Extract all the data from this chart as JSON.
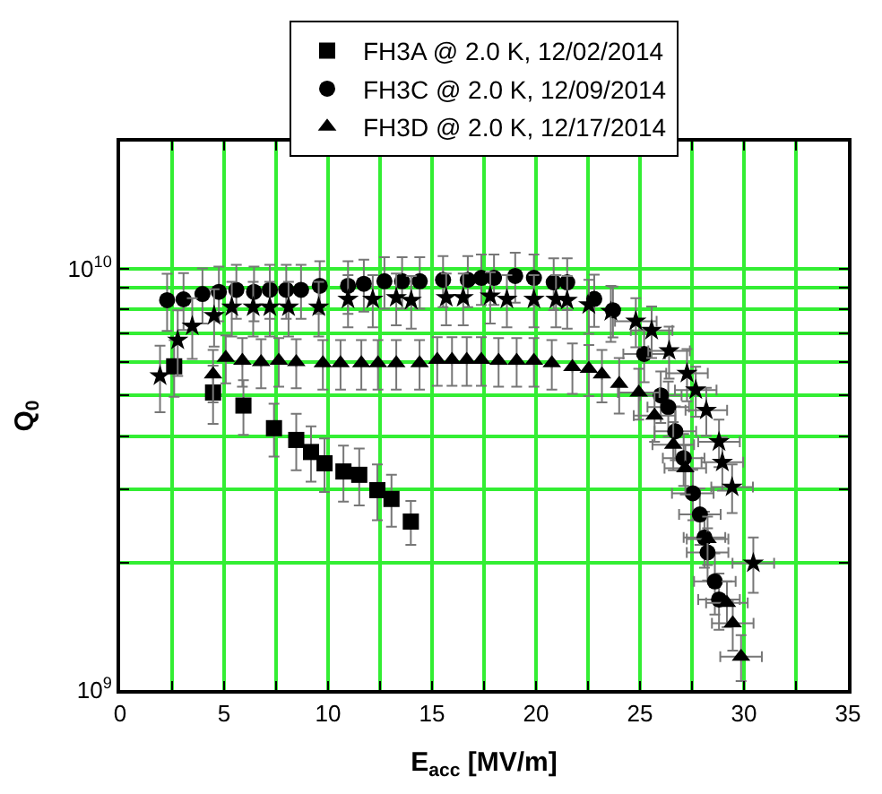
{
  "chart_data": {
    "type": "scatter",
    "xlabel": "E$_{acc}$ [MV/m]",
    "ylabel": "Q$_{0}$",
    "log": "y",
    "grid": true,
    "legend": "top",
    "xlim": [
      0,
      35
    ],
    "xticks": [
      0,
      {
        "value": 2.5,
        "label": null
      },
      5,
      {
        "value": 7.5,
        "label": null
      },
      10,
      {
        "value": 12.5,
        "label": null
      },
      15,
      {
        "value": 17.5,
        "label": null
      },
      20,
      {
        "value": 22.5,
        "label": null
      },
      25,
      {
        "value": 27.5,
        "label": null
      },
      30,
      {
        "value": 32.5,
        "label": null
      },
      35
    ],
    "ylim": [
      1000000000.0,
      20000000000.0
    ],
    "yticks": [
      {
        "value": 1000000000.0,
        "label": "10$^{9}$"
      },
      {
        "value": 2000000000.0,
        "label": null
      },
      {
        "value": 3000000000.0,
        "label": null
      },
      {
        "value": 4000000000.0,
        "label": null
      },
      {
        "value": 5000000000.0,
        "label": null
      },
      {
        "value": 6000000000.0,
        "label": null
      },
      {
        "value": 7000000000.0,
        "label": null
      },
      {
        "value": 8000000000.0,
        "label": null
      },
      {
        "value": 9000000000.0,
        "label": null
      },
      {
        "value": 10000000000.0,
        "label": "10$^{10}$"
      }
    ],
    "series": [
      {
        "name": "FH3A @ 2.0 K, 12/02/2014",
        "color": "#000000",
        "marker": "square",
        "x": [
          2.6,
          4.47,
          5.93,
          7.4,
          8.47,
          9.18,
          9.83,
          10.74,
          11.5,
          12.37,
          13.05,
          13.98
        ],
        "values": [
          5860000000.0,
          5080000000.0,
          4730000000.0,
          4180000000.0,
          3920000000.0,
          3670000000.0,
          3450000000.0,
          3300000000.0,
          3240000000.0,
          2980000000.0,
          2840000000.0,
          2510000000.0
        ],
        "errors": [
          900000000.0,
          800000000.0,
          700000000.0,
          600000000.0,
          600000000.0,
          550000000.0,
          500000000.0,
          500000000.0,
          500000000.0,
          450000000.0,
          400000000.0,
          300000000.0
        ]
      },
      {
        "name": "FH3C @ 2.0 K, 12/09/2014",
        "color": "#000000",
        "marker": "circle",
        "x": [
          2.26,
          3.05,
          3.96,
          4.75,
          5.59,
          6.44,
          7.2,
          7.99,
          8.7,
          9.6,
          10.96,
          11.72,
          12.71,
          13.56,
          14.41,
          15.53,
          16.72,
          17.37,
          17.98,
          19.0,
          19.9,
          20.85,
          21.5,
          22.8,
          23.7,
          25.2,
          26.0,
          26.36,
          26.7,
          27.1,
          27.54,
          27.88,
          28.1,
          28.25,
          28.6,
          28.8
        ],
        "values": [
          8410000000.0,
          8450000000.0,
          8700000000.0,
          8800000000.0,
          8900000000.0,
          8800000000.0,
          8900000000.0,
          8900000000.0,
          8900000000.0,
          9100000000.0,
          9100000000.0,
          9200000000.0,
          9330000000.0,
          9330000000.0,
          9330000000.0,
          9400000000.0,
          9400000000.0,
          9500000000.0,
          9500000000.0,
          9600000000.0,
          9500000000.0,
          9270000000.0,
          9270000000.0,
          8470000000.0,
          7960000000.0,
          6270000000.0,
          5000000000.0,
          4690000000.0,
          4110000000.0,
          3550000000.0,
          2930000000.0,
          2610000000.0,
          2300000000.0,
          2120000000.0,
          1810000000.0,
          1640000000.0
        ],
        "errors": [
          1300000000.0,
          1300000000.0,
          1300000000.0,
          1300000000.0,
          1300000000.0,
          1300000000.0,
          1300000000.0,
          1300000000.0,
          1300000000.0,
          1300000000.0,
          1300000000.0,
          1300000000.0,
          1300000000.0,
          1300000000.0,
          1300000000.0,
          1300000000.0,
          1300000000.0,
          1300000000.0,
          1300000000.0,
          1300000000.0,
          1300000000.0,
          1300000000.0,
          1300000000.0,
          1200000000.0,
          1100000000.0,
          900000000.0,
          700000000.0,
          700000000.0,
          600000000.0,
          500000000.0,
          400000000.0,
          400000000.0,
          350000000.0,
          300000000.0,
          300000000.0,
          250000000.0
        ],
        "xerrors": [
          null,
          null,
          null,
          null,
          null,
          null,
          null,
          null,
          null,
          null,
          null,
          null,
          null,
          null,
          null,
          null,
          null,
          null,
          null,
          null,
          null,
          null,
          null,
          null,
          null,
          1.0,
          1.0,
          1.0,
          1.0,
          1.0,
          1.0,
          1.0,
          1.0,
          1.0,
          1.0,
          1.0
        ]
      },
      {
        "color": "#000000",
        "marker": "star",
        "x": [
          1.92,
          2.77,
          3.47,
          4.52,
          5.37,
          6.4,
          7.2,
          8.1,
          9.55,
          10.96,
          12.15,
          13.28,
          14.0,
          15.68,
          16.5,
          17.8,
          18.6,
          19.9,
          20.96,
          21.5,
          22.54,
          23.6,
          24.8,
          25.56,
          26.4,
          27.26,
          27.68,
          28.19,
          28.8,
          28.96,
          29.43,
          30.45
        ],
        "values": [
          5560000000.0,
          6760000000.0,
          7300000000.0,
          7730000000.0,
          8100000000.0,
          8100000000.0,
          8100000000.0,
          8100000000.0,
          8100000000.0,
          8450000000.0,
          8450000000.0,
          8530000000.0,
          8400000000.0,
          8530000000.0,
          8530000000.0,
          8600000000.0,
          8450000000.0,
          8450000000.0,
          8450000000.0,
          8400000000.0,
          8200000000.0,
          7900000000.0,
          7500000000.0,
          7130000000.0,
          6380000000.0,
          5640000000.0,
          5150000000.0,
          4610000000.0,
          3880000000.0,
          3470000000.0,
          3030000000.0,
          2000000000.0
        ],
        "errors": [
          1000000000.0,
          1200000000.0,
          1200000000.0,
          1200000000.0,
          1200000000.0,
          1200000000.0,
          1200000000.0,
          1200000000.0,
          1200000000.0,
          1200000000.0,
          1200000000.0,
          1200000000.0,
          1200000000.0,
          1200000000.0,
          1200000000.0,
          1200000000.0,
          1200000000.0,
          1200000000.0,
          1200000000.0,
          1200000000.0,
          1200000000.0,
          1200000000.0,
          1000000000.0,
          1000000000.0,
          900000000.0,
          800000000.0,
          700000000.0,
          600000000.0,
          500000000.0,
          500000000.0,
          400000000.0,
          300000000.0
        ],
        "xerrors": [
          null,
          null,
          null,
          null,
          null,
          null,
          null,
          null,
          null,
          null,
          null,
          null,
          null,
          null,
          null,
          null,
          null,
          null,
          null,
          null,
          null,
          null,
          1.0,
          1.0,
          1.0,
          1.0,
          1.0,
          1.0,
          1.0,
          1.0,
          1.0,
          1.0
        ]
      },
      {
        "name": "FH3D @ 2.0 K, 12/17/2014",
        "color": "#000000",
        "marker": "triangle",
        "x": [
          4.47,
          5.08,
          5.88,
          6.78,
          7.63,
          8.47,
          9.75,
          10.6,
          11.6,
          12.4,
          13.28,
          14.4,
          15.25,
          15.96,
          16.67,
          17.37,
          18.2,
          19.07,
          19.9,
          20.76,
          21.75,
          22.54,
          23.17,
          24.0,
          24.94,
          25.7,
          26.6,
          27.18,
          28.25,
          29.18,
          29.46,
          29.86
        ],
        "values": [
          5610000000.0,
          6140000000.0,
          6040000000.0,
          6000000000.0,
          6040000000.0,
          6000000000.0,
          5960000000.0,
          5960000000.0,
          5960000000.0,
          5960000000.0,
          5960000000.0,
          5960000000.0,
          6070000000.0,
          6070000000.0,
          6070000000.0,
          6070000000.0,
          6040000000.0,
          6040000000.0,
          6040000000.0,
          5960000000.0,
          5840000000.0,
          5780000000.0,
          5610000000.0,
          5330000000.0,
          5080000000.0,
          4480000000.0,
          3820000000.0,
          3360000000.0,
          2280000000.0,
          1610000000.0,
          1440000000.0,
          1200000000.0
        ],
        "errors": [
          800000000.0,
          800000000.0,
          800000000.0,
          800000000.0,
          800000000.0,
          800000000.0,
          800000000.0,
          800000000.0,
          800000000.0,
          800000000.0,
          800000000.0,
          800000000.0,
          800000000.0,
          800000000.0,
          800000000.0,
          800000000.0,
          800000000.0,
          800000000.0,
          800000000.0,
          800000000.0,
          800000000.0,
          800000000.0,
          800000000.0,
          800000000.0,
          700000000.0,
          600000000.0,
          500000000.0,
          450000000.0,
          300000000.0,
          200000000.0,
          200000000.0,
          150000000.0
        ],
        "xerrors": [
          null,
          null,
          null,
          null,
          null,
          null,
          null,
          null,
          null,
          null,
          null,
          null,
          null,
          null,
          null,
          null,
          null,
          null,
          null,
          null,
          null,
          null,
          null,
          null,
          1.0,
          1.0,
          1.0,
          1.0,
          1.0,
          1.0,
          1.0,
          1.0
        ]
      }
    ]
  }
}
